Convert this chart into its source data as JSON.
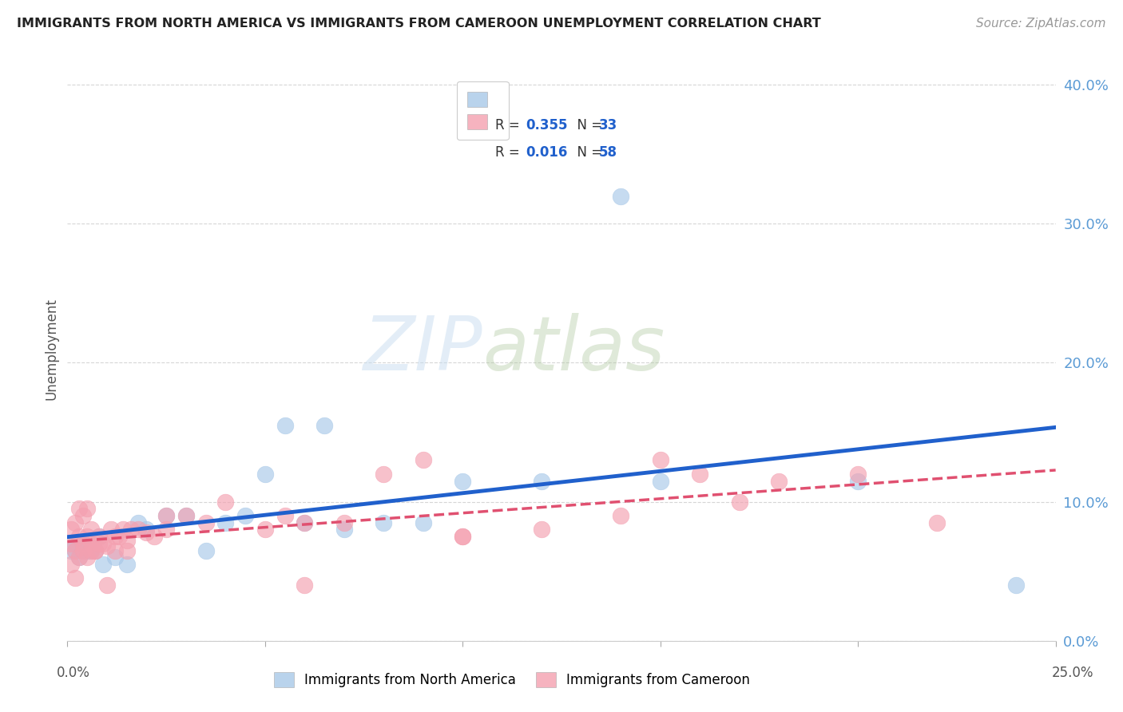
{
  "title": "IMMIGRANTS FROM NORTH AMERICA VS IMMIGRANTS FROM CAMEROON UNEMPLOYMENT CORRELATION CHART",
  "source": "Source: ZipAtlas.com",
  "ylabel": "Unemployment",
  "yticks": [
    0.0,
    0.1,
    0.2,
    0.3,
    0.4
  ],
  "ytick_labels": [
    "0.0%",
    "10.0%",
    "20.0%",
    "30.0%",
    "40.0%"
  ],
  "xlim": [
    0.0,
    0.25
  ],
  "ylim": [
    0.0,
    0.42
  ],
  "blue_color": "#a8c8e8",
  "pink_color": "#f4a0b0",
  "blue_line_color": "#2060cc",
  "pink_line_color": "#e05070",
  "axis_tick_color": "#5b9bd5",
  "title_color": "#222222",
  "north_america_x": [
    0.001,
    0.002,
    0.003,
    0.004,
    0.005,
    0.007,
    0.009,
    0.012,
    0.015,
    0.018,
    0.02,
    0.025,
    0.03,
    0.04,
    0.05,
    0.055,
    0.06,
    0.065,
    0.07,
    0.08,
    0.09,
    0.1,
    0.12,
    0.15,
    0.2,
    0.24,
    0.002,
    0.004,
    0.006,
    0.008,
    0.035,
    0.045,
    0.14
  ],
  "north_america_y": [
    0.065,
    0.065,
    0.06,
    0.07,
    0.065,
    0.065,
    0.055,
    0.06,
    0.055,
    0.085,
    0.08,
    0.09,
    0.09,
    0.085,
    0.12,
    0.155,
    0.085,
    0.155,
    0.08,
    0.085,
    0.085,
    0.115,
    0.115,
    0.115,
    0.115,
    0.04,
    0.07,
    0.065,
    0.065,
    0.075,
    0.065,
    0.09,
    0.32
  ],
  "cameroon_x": [
    0.001,
    0.001,
    0.002,
    0.002,
    0.003,
    0.003,
    0.004,
    0.004,
    0.005,
    0.005,
    0.006,
    0.006,
    0.007,
    0.008,
    0.009,
    0.01,
    0.011,
    0.012,
    0.013,
    0.014,
    0.015,
    0.016,
    0.018,
    0.02,
    0.022,
    0.025,
    0.03,
    0.035,
    0.04,
    0.05,
    0.055,
    0.06,
    0.07,
    0.08,
    0.09,
    0.1,
    0.12,
    0.14,
    0.15,
    0.16,
    0.17,
    0.18,
    0.2,
    0.22,
    0.001,
    0.002,
    0.003,
    0.004,
    0.005,
    0.006,
    0.007,
    0.008,
    0.01,
    0.012,
    0.015,
    0.025,
    0.06,
    0.1
  ],
  "cameroon_y": [
    0.07,
    0.08,
    0.065,
    0.085,
    0.075,
    0.095,
    0.07,
    0.09,
    0.075,
    0.095,
    0.07,
    0.08,
    0.065,
    0.075,
    0.07,
    0.068,
    0.08,
    0.075,
    0.075,
    0.08,
    0.072,
    0.08,
    0.08,
    0.078,
    0.075,
    0.09,
    0.09,
    0.085,
    0.1,
    0.08,
    0.09,
    0.085,
    0.085,
    0.12,
    0.13,
    0.075,
    0.08,
    0.09,
    0.13,
    0.12,
    0.1,
    0.115,
    0.12,
    0.085,
    0.055,
    0.045,
    0.06,
    0.065,
    0.06,
    0.065,
    0.065,
    0.07,
    0.04,
    0.065,
    0.065,
    0.08,
    0.04,
    0.075
  ]
}
